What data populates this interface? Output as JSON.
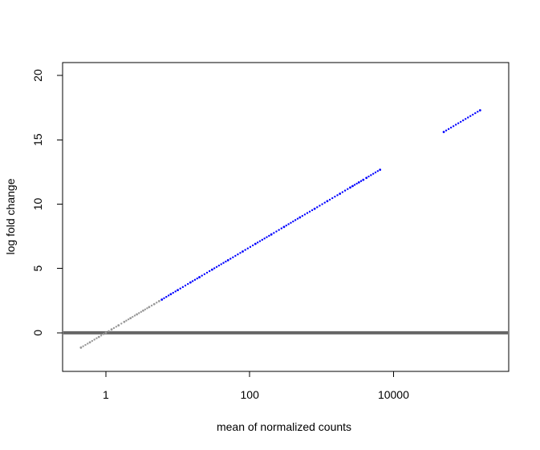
{
  "chart_data": {
    "type": "scatter",
    "title": "",
    "xlabel": "mean of normalized counts",
    "ylabel": "log fold change",
    "x_scale": "log10",
    "xlim": [
      0.25,
      400000
    ],
    "ylim": [
      -3,
      21
    ],
    "x_ticks": [
      {
        "value": 1,
        "label": "1"
      },
      {
        "value": 100,
        "label": "100"
      },
      {
        "value": 10000,
        "label": "10000"
      }
    ],
    "y_ticks": [
      {
        "value": 0,
        "label": "0"
      },
      {
        "value": 5,
        "label": "5"
      },
      {
        "value": 10,
        "label": "10"
      },
      {
        "value": 15,
        "label": "15"
      },
      {
        "value": 20,
        "label": "20"
      }
    ],
    "reference_line": {
      "y": 0,
      "color": "#666666"
    },
    "grid": false,
    "series": [
      {
        "color": "#999999",
        "points": [
          [
            0.45,
            -1.15
          ],
          [
            0.6,
            -0.74
          ],
          [
            0.8,
            -0.32
          ],
          [
            1.0,
            0.0
          ],
          [
            1.2,
            0.26
          ],
          [
            1.5,
            0.58
          ],
          [
            1.8,
            0.85
          ],
          [
            2.2,
            1.14
          ],
          [
            2.7,
            1.43
          ],
          [
            3.3,
            1.72
          ],
          [
            4.0,
            2.0
          ],
          [
            4.7,
            2.23
          ],
          [
            5.5,
            2.46
          ]
        ]
      },
      {
        "color": "#0000ff",
        "points": [
          [
            6.0,
            2.58
          ],
          [
            8.0,
            3.0
          ],
          [
            10.0,
            3.32
          ],
          [
            15.0,
            3.91
          ],
          [
            20.0,
            4.32
          ],
          [
            30.0,
            4.91
          ],
          [
            50.0,
            5.64
          ],
          [
            80.0,
            6.32
          ],
          [
            120.0,
            6.91
          ],
          [
            200.0,
            7.64
          ],
          [
            300.0,
            8.23
          ],
          [
            500.0,
            8.97
          ],
          [
            800.0,
            9.64
          ],
          [
            1200.0,
            10.23
          ],
          [
            1800.0,
            10.81
          ],
          [
            2500.0,
            11.29
          ],
          [
            2700.0,
            11.4
          ],
          [
            3300.0,
            11.69
          ],
          [
            3800.0,
            11.89
          ],
          [
            4200.0,
            12.04
          ],
          [
            6500.0,
            12.67
          ],
          [
            50000.0,
            15.61
          ],
          [
            160000.0,
            17.29
          ]
        ]
      }
    ]
  }
}
